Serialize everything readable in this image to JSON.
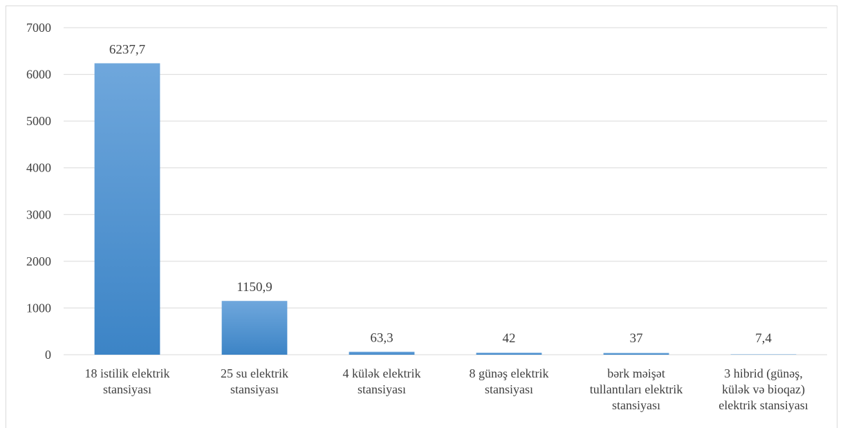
{
  "chart_data": {
    "type": "bar",
    "categories": [
      [
        "18 istilik elektrik",
        "stansiyası"
      ],
      [
        "25 su elektrik",
        "stansiyası"
      ],
      [
        "4 külək elektrik",
        "stansiyası"
      ],
      [
        "8 günəş elektrik",
        "stansiyası"
      ],
      [
        "bərk məişət",
        "tullantıları elektrik",
        "stansiyası"
      ],
      [
        "3 hibrid (günəş,",
        "külək və bioqaz)",
        "elektrik stansiyası"
      ]
    ],
    "values": [
      6237.7,
      1150.9,
      63.3,
      42,
      37,
      7.4
    ],
    "data_labels": [
      "6237,7",
      "1150,9",
      "63,3",
      "42",
      "37",
      "7,4"
    ],
    "ylim": [
      0,
      7000
    ],
    "yticks": [
      0,
      1000,
      2000,
      3000,
      4000,
      5000,
      6000,
      7000
    ],
    "grid": true,
    "legend": "none",
    "bar_color_top": "#6fa7dc",
    "bar_color_bottom": "#3c84c6"
  }
}
